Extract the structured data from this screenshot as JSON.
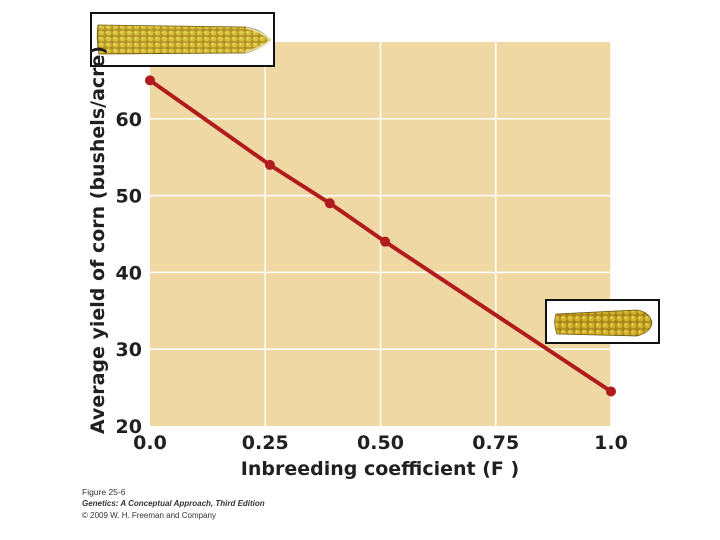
{
  "chart_data": {
    "type": "line",
    "xlabel": "Inbreeding coefficient (F )",
    "ylabel": "Average yield of corn (bushels/acre)",
    "xlim": [
      0,
      1
    ],
    "ylim": [
      20,
      70
    ],
    "x_ticks": [
      "0.0",
      "0.25",
      "0.50",
      "0.75",
      "1.0"
    ],
    "x_tick_values": [
      0,
      0.25,
      0.5,
      0.75,
      1.0
    ],
    "y_ticks": [
      "20",
      "30",
      "40",
      "50",
      "60"
    ],
    "y_tick_values": [
      20,
      30,
      40,
      50,
      60
    ],
    "grid": true,
    "background_color": "#f0d8a4",
    "line_color": "#b01c1c",
    "series": [
      {
        "x": [
          0.0,
          0.26,
          0.39,
          0.51,
          1.0
        ],
        "y": [
          65,
          54,
          49,
          44,
          24.5
        ]
      }
    ],
    "annotations": [
      {
        "type": "image",
        "name": "corn-ear-large-image",
        "position": "top-left"
      },
      {
        "type": "image",
        "name": "corn-ear-small-image",
        "position": "lower-right"
      }
    ]
  },
  "caption": {
    "figure": "Figure 25-6",
    "book": "Genetics: A Conceptual Approach, Third Edition",
    "copyright": "© 2009 W. H. Freeman and Company"
  }
}
